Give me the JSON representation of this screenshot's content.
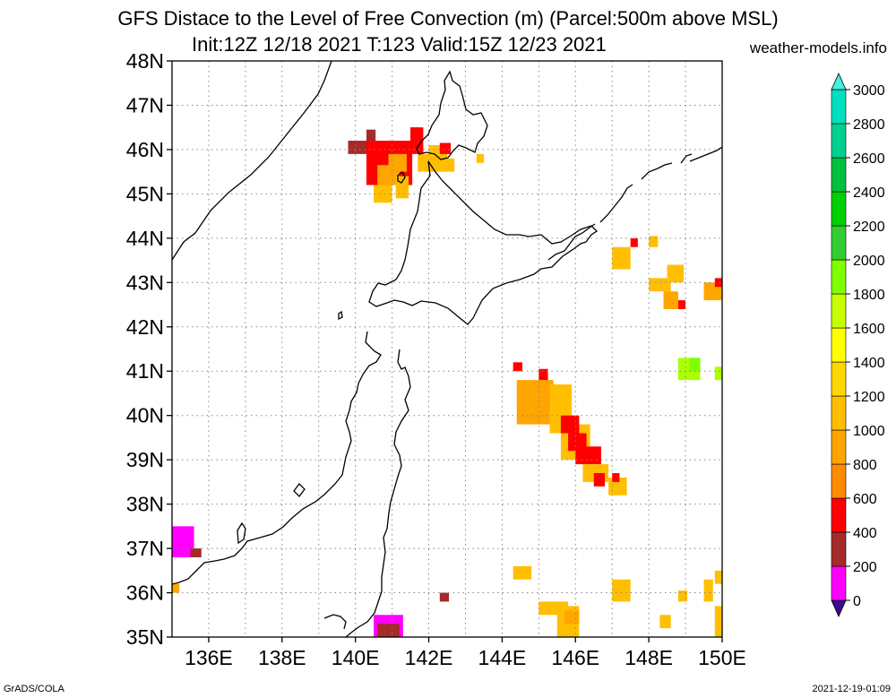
{
  "title_line1": "GFS Distace to the Level of Free Convection (m) (Parcel:500m above MSL)",
  "title_line2": "Init:12Z 12/18 2021 T:123 Valid:15Z 12/23 2021",
  "site": "weather-models.info",
  "footer_left": "GrADS/COLA",
  "footer_right": "2021-12-19-01:09",
  "map": {
    "lat_min": 35,
    "lat_max": 48,
    "lon_min": 135,
    "lon_max": 150,
    "lat_labels": [
      "35N",
      "36N",
      "37N",
      "38N",
      "39N",
      "40N",
      "41N",
      "42N",
      "43N",
      "44N",
      "45N",
      "46N",
      "47N",
      "48N"
    ],
    "lon_labels": [
      "136E",
      "138E",
      "140E",
      "142E",
      "144E",
      "146E",
      "148E",
      "150E"
    ],
    "lon_label_values": [
      136,
      138,
      140,
      142,
      144,
      146,
      148,
      150
    ]
  },
  "colorbar": {
    "levels": [
      "0",
      "200",
      "400",
      "600",
      "800",
      "1000",
      "1200",
      "1400",
      "1600",
      "1800",
      "2000",
      "2200",
      "2400",
      "2600",
      "2800",
      "3000"
    ],
    "colors": [
      "#3a0a8c",
      "#ff00ff",
      "#a52a2a",
      "#ff0000",
      "#ff8c00",
      "#ffa500",
      "#ffbf00",
      "#ffd700",
      "#ffff00",
      "#c8ff00",
      "#7fff00",
      "#32cd32",
      "#00d000",
      "#00c040",
      "#00d090",
      "#00e0c0",
      "#40f0e0"
    ]
  },
  "cell_colors": {
    "b": "#a52a2a",
    "r": "#ff0000",
    "o": "#ffa500",
    "y": "#ffbf00",
    "m": "#ff00ff",
    "g": "#aaff00",
    "lg": "#7fff00"
  },
  "cells": [
    [
      139.8,
      45.9,
      0.6,
      0.3,
      "b"
    ],
    [
      140.3,
      46.2,
      0.25,
      0.25,
      "b"
    ],
    [
      140.3,
      45.2,
      1.25,
      1.0,
      "r"
    ],
    [
      141.5,
      45.9,
      0.35,
      0.6,
      "r"
    ],
    [
      141.5,
      46.2,
      0.25,
      0.3,
      "r"
    ],
    [
      140.6,
      45.2,
      0.6,
      0.45,
      "o"
    ],
    [
      140.9,
      45.5,
      0.5,
      0.4,
      "o"
    ],
    [
      140.5,
      44.8,
      0.5,
      0.4,
      "y"
    ],
    [
      141.1,
      44.9,
      0.35,
      0.5,
      "y"
    ],
    [
      141.7,
      45.5,
      0.4,
      0.4,
      "y"
    ],
    [
      142.0,
      45.5,
      0.5,
      0.6,
      "y"
    ],
    [
      142.4,
      45.5,
      0.3,
      0.3,
      "y"
    ],
    [
      143.3,
      45.7,
      0.2,
      0.2,
      "y"
    ],
    [
      142.3,
      45.9,
      0.3,
      0.25,
      "r"
    ],
    [
      147.5,
      43.8,
      0.2,
      0.2,
      "r"
    ],
    [
      147.0,
      43.3,
      0.5,
      0.5,
      "y"
    ],
    [
      148.0,
      43.8,
      0.25,
      0.25,
      "y"
    ],
    [
      148.5,
      43.0,
      0.45,
      0.4,
      "y"
    ],
    [
      148.0,
      42.8,
      0.6,
      0.3,
      "y"
    ],
    [
      148.4,
      42.4,
      0.4,
      0.4,
      "o"
    ],
    [
      148.8,
      42.4,
      0.2,
      0.2,
      "r"
    ],
    [
      149.5,
      42.6,
      0.5,
      0.4,
      "o"
    ],
    [
      149.8,
      42.9,
      0.2,
      0.2,
      "r"
    ],
    [
      144.3,
      41.0,
      0.25,
      0.2,
      "r"
    ],
    [
      144.4,
      39.8,
      1.0,
      1.0,
      "o"
    ],
    [
      145.0,
      40.8,
      0.25,
      0.25,
      "r"
    ],
    [
      145.3,
      39.6,
      0.6,
      1.1,
      "y"
    ],
    [
      145.6,
      39.0,
      0.8,
      0.8,
      "y"
    ],
    [
      145.6,
      39.6,
      0.5,
      0.4,
      "r"
    ],
    [
      145.8,
      39.2,
      0.5,
      0.4,
      "r"
    ],
    [
      146.0,
      38.9,
      0.7,
      0.4,
      "r"
    ],
    [
      146.2,
      38.5,
      0.7,
      0.4,
      "y"
    ],
    [
      146.5,
      38.4,
      0.3,
      0.3,
      "r"
    ],
    [
      146.9,
      38.2,
      0.5,
      0.4,
      "y"
    ],
    [
      147.0,
      38.5,
      0.2,
      0.2,
      "r"
    ],
    [
      148.8,
      40.8,
      0.6,
      0.5,
      "g"
    ],
    [
      149.1,
      41.0,
      0.3,
      0.3,
      "lg"
    ],
    [
      149.8,
      40.8,
      0.3,
      0.3,
      "g"
    ],
    [
      135.0,
      36.8,
      0.6,
      0.7,
      "m"
    ],
    [
      135.5,
      36.8,
      0.3,
      0.2,
      "b"
    ],
    [
      135.0,
      36.0,
      0.2,
      0.2,
      "o"
    ],
    [
      144.3,
      36.3,
      0.5,
      0.3,
      "y"
    ],
    [
      142.3,
      35.8,
      0.25,
      0.2,
      "b"
    ],
    [
      147.0,
      35.8,
      0.5,
      0.5,
      "y"
    ],
    [
      148.8,
      35.8,
      0.25,
      0.25,
      "y"
    ],
    [
      149.5,
      35.8,
      0.25,
      0.5,
      "y"
    ],
    [
      149.8,
      36.2,
      0.2,
      0.3,
      "y"
    ],
    [
      145.0,
      35.5,
      0.8,
      0.3,
      "y"
    ],
    [
      145.5,
      35.0,
      0.6,
      0.7,
      "y"
    ],
    [
      145.7,
      35.3,
      0.4,
      0.3,
      "o"
    ],
    [
      148.3,
      35.2,
      0.3,
      0.3,
      "y"
    ],
    [
      149.8,
      35.0,
      0.2,
      0.7,
      "y"
    ],
    [
      140.5,
      35.0,
      0.8,
      0.5,
      "m"
    ],
    [
      140.6,
      35.0,
      0.6,
      0.3,
      "b"
    ]
  ]
}
